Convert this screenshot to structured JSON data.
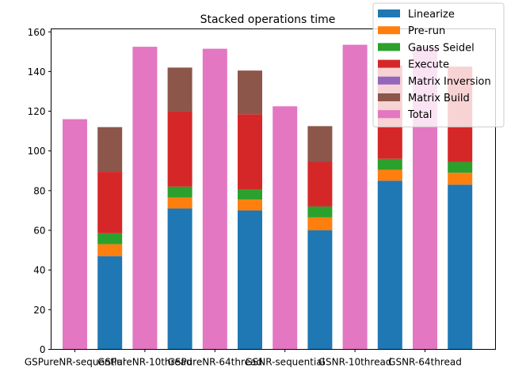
{
  "chart_data": {
    "type": "bar",
    "stacked": true,
    "title": "Stacked operations time",
    "xlabel": "",
    "ylabel": "",
    "ylim": [
      0,
      161.5
    ],
    "yticks": [
      0,
      20,
      40,
      60,
      80,
      100,
      120,
      140,
      160
    ],
    "grid": false,
    "legend_position": "top-right",
    "categories": [
      "GSPureNR-sequential",
      "GSPureNR-10thread",
      "GSPureNR-64thread",
      "GSNR-sequential",
      "GSNR-10thread",
      "GSNR-64thread"
    ],
    "series": [
      {
        "name": "Linearize",
        "color": "#1f77b4",
        "values": [
          47,
          71,
          70,
          60,
          85,
          83
        ]
      },
      {
        "name": "Pre-run",
        "color": "#ff7f0e",
        "values": [
          6,
          5.5,
          5.5,
          6.5,
          5.5,
          6
        ]
      },
      {
        "name": "Gauss Seidel",
        "color": "#2ca02c",
        "values": [
          5.5,
          5.5,
          5,
          5.5,
          5.5,
          5.5
        ]
      },
      {
        "name": "Execute",
        "color": "#d62728",
        "values": [
          31,
          38,
          38,
          22.5,
          47,
          48
        ]
      },
      {
        "name": "Matrix Inversion",
        "color": "#9467bd",
        "values": [
          0,
          0,
          0,
          0,
          0,
          0
        ]
      },
      {
        "name": "Matrix Build",
        "color": "#8c564b",
        "values": [
          22.5,
          22,
          22,
          18,
          0,
          0
        ]
      },
      {
        "name": "Total",
        "color": "#e377c2",
        "values": [
          116,
          152.5,
          151.5,
          122.5,
          153.5,
          152.5
        ]
      }
    ]
  }
}
